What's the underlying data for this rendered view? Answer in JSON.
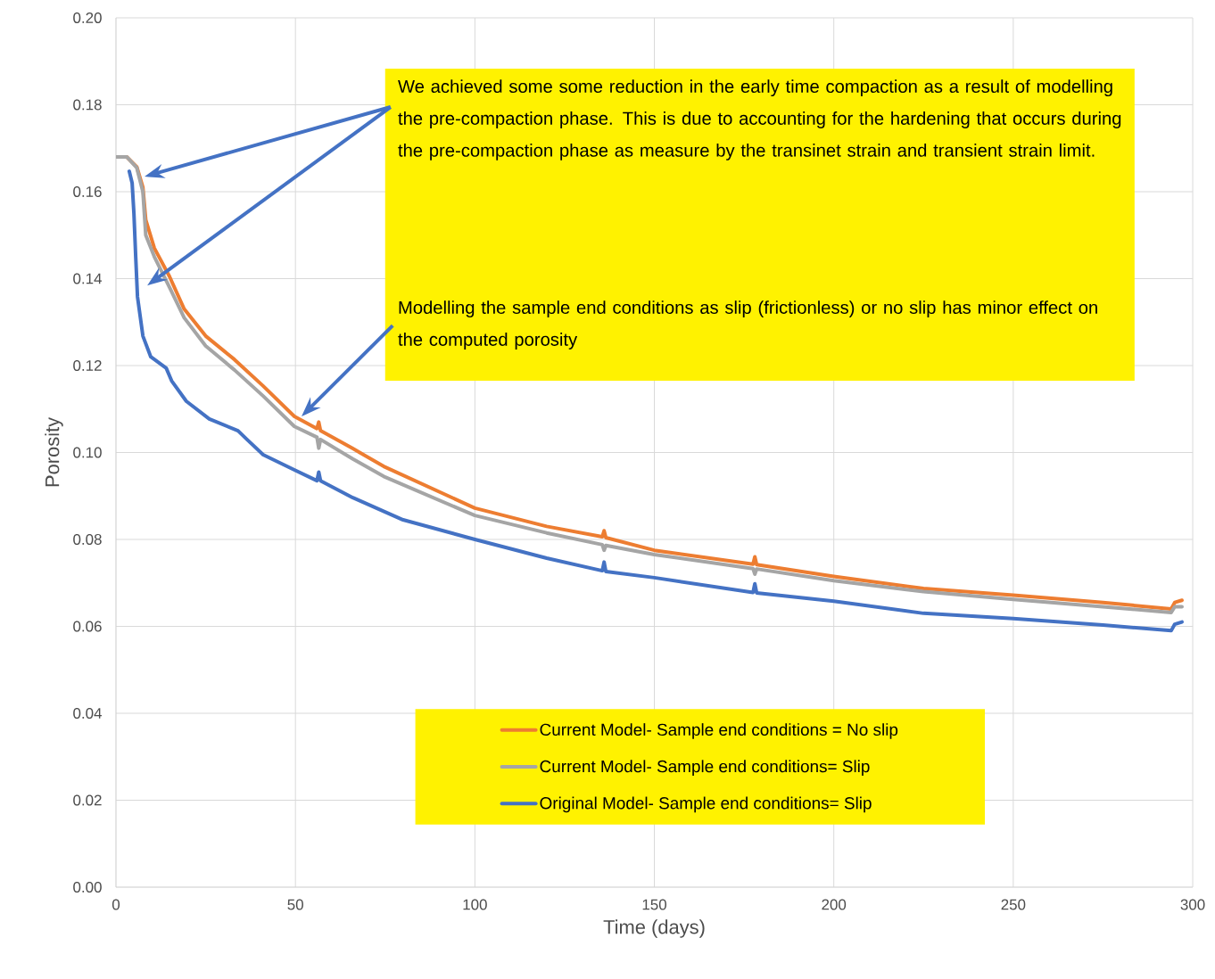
{
  "chart_data": {
    "type": "line",
    "xlabel": "Time (days)",
    "ylabel": "Porosity",
    "xlim": [
      0,
      300
    ],
    "xticks": [
      0,
      50,
      100,
      150,
      200,
      250,
      300
    ],
    "ylim": [
      0,
      0.2
    ],
    "yticks": [
      {
        "value": 0,
        "label": "0.00"
      },
      {
        "value": 0.02,
        "label": "0.02"
      },
      {
        "value": 0.04,
        "label": "0.04"
      },
      {
        "value": 0.06,
        "label": "0.06"
      },
      {
        "value": 0.08,
        "label": "0.08"
      },
      {
        "value": 0.1,
        "label": "0.10"
      },
      {
        "value": 0.12,
        "label": "0.12"
      },
      {
        "value": 0.14,
        "label": "0.14"
      },
      {
        "value": 0.16,
        "label": "0.16"
      },
      {
        "value": 0.18,
        "label": "0.18"
      },
      {
        "value": 0.2,
        "label": "0.20"
      }
    ],
    "grid": true,
    "legend": "bottom",
    "marker": "none",
    "line_style": "solid",
    "series": [
      {
        "name": "Current Model- Sample end conditions = No slip",
        "color": "#ed7d31",
        "x": [
          0,
          3,
          5.8,
          7.5,
          8.3,
          10.7,
          14.9,
          19,
          25,
          33,
          41,
          49.7,
          56,
          56.5,
          57,
          66,
          74.6,
          100,
          120,
          135.5,
          136,
          136.5,
          150,
          177.5,
          178,
          178.5,
          200,
          225,
          250,
          275,
          294,
          295,
          297
        ],
        "values": [
          0.168,
          0.168,
          0.1657,
          0.161,
          0.1535,
          0.147,
          0.1405,
          0.133,
          0.1268,
          0.1214,
          0.1153,
          0.1083,
          0.1055,
          0.107,
          0.105,
          0.1009,
          0.0968,
          0.0872,
          0.083,
          0.0806,
          0.082,
          0.0804,
          0.0775,
          0.0743,
          0.076,
          0.0742,
          0.0715,
          0.0687,
          0.0672,
          0.0655,
          0.064,
          0.0655,
          0.066
        ]
      },
      {
        "name": "Current Model- Sample end conditions= Slip",
        "color": "#a5a5a5",
        "x": [
          0,
          3,
          5.8,
          7.5,
          8.3,
          10.7,
          14.9,
          19,
          25,
          33,
          41,
          49.7,
          56,
          56.5,
          57,
          66,
          74.6,
          100,
          120,
          135.5,
          136,
          136.5,
          150,
          177.5,
          178,
          178.5,
          200,
          225,
          250,
          275,
          294,
          295,
          297
        ],
        "values": [
          0.168,
          0.168,
          0.1655,
          0.16,
          0.15,
          0.145,
          0.138,
          0.131,
          0.1245,
          0.119,
          0.113,
          0.106,
          0.1035,
          0.101,
          0.103,
          0.0985,
          0.0945,
          0.0855,
          0.0815,
          0.0788,
          0.0775,
          0.0786,
          0.0765,
          0.0733,
          0.072,
          0.0732,
          0.0705,
          0.068,
          0.0662,
          0.0645,
          0.0632,
          0.0645,
          0.0645
        ]
      },
      {
        "name": "Original Model- Sample end conditions= Slip",
        "color": "#4472c4",
        "x": [
          3.7,
          4.5,
          5,
          5.5,
          6,
          7.5,
          9.7,
          14,
          15.5,
          19.6,
          26,
          34,
          36.5,
          41,
          49.7,
          56,
          56.5,
          57,
          66,
          80,
          100,
          120,
          135.5,
          136,
          136.5,
          150,
          177.5,
          178,
          178.5,
          200,
          225,
          250,
          275,
          294,
          295,
          297
        ],
        "values": [
          0.1647,
          0.162,
          0.155,
          0.145,
          0.1358,
          0.1268,
          0.122,
          0.1194,
          0.1165,
          0.1118,
          0.1077,
          0.105,
          0.103,
          0.0995,
          0.096,
          0.0935,
          0.0955,
          0.0935,
          0.0896,
          0.0845,
          0.08,
          0.0757,
          0.0728,
          0.0748,
          0.0726,
          0.0712,
          0.0678,
          0.0698,
          0.0677,
          0.0658,
          0.063,
          0.0618,
          0.0603,
          0.059,
          0.0605,
          0.061
        ]
      }
    ],
    "annotations": [
      "We achieved some some reduction in the early time compaction as a result of modelling the pre-compaction phase.  This is due to accounting for the hardening that occurs during the pre-compaction phase as measure by the transinet strain and transient strain limit.",
      "Modelling the sample end conditions as slip (frictionless) or no slip has minor effect on the computed porosity"
    ]
  }
}
